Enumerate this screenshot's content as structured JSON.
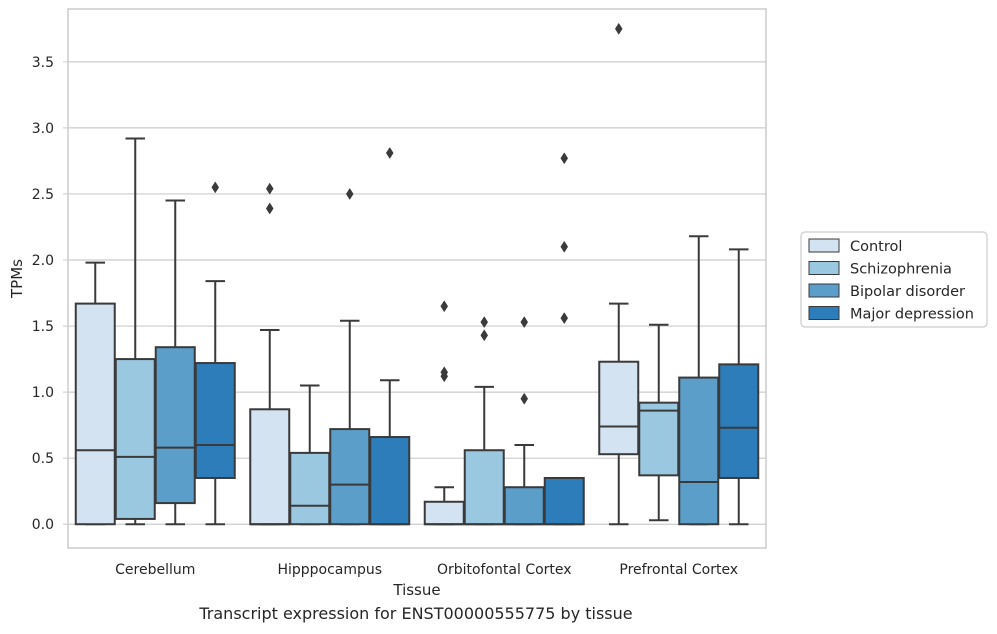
{
  "chart_data": {
    "type": "boxplot",
    "xlabel": "Tissue",
    "ylabel": "TPMs",
    "caption": "Transcript expression for ENST00000555775 by tissue",
    "ylim": [
      -0.18,
      3.9
    ],
    "yticks": [
      "0.0",
      "0.5",
      "1.0",
      "1.5",
      "2.0",
      "2.5",
      "3.0",
      "3.5"
    ],
    "grid": "horizontal",
    "legend_position": "right",
    "categories": [
      "Cerebellum",
      "Hipppocampus",
      "Orbitofontal Cortex",
      "Prefrontal Cortex"
    ],
    "series": [
      {
        "name": "Control",
        "color": "#d3e3f1",
        "boxes": [
          {
            "whislo": 0.0,
            "q1": 0.0,
            "med": 0.56,
            "q3": 1.67,
            "whishi": 1.98,
            "fliers": []
          },
          {
            "whislo": 0.0,
            "q1": 0.0,
            "med": 0.0,
            "q3": 0.87,
            "whishi": 1.47,
            "fliers": [
              2.39,
              2.54
            ]
          },
          {
            "whislo": 0.0,
            "q1": 0.0,
            "med": 0.0,
            "q3": 0.17,
            "whishi": 0.28,
            "fliers": [
              1.12,
              1.15,
              1.65
            ]
          },
          {
            "whislo": 0.0,
            "q1": 0.53,
            "med": 0.74,
            "q3": 1.23,
            "whishi": 1.67,
            "fliers": [
              3.75
            ]
          }
        ]
      },
      {
        "name": "Schizophrenia",
        "color": "#9ac8e0",
        "boxes": [
          {
            "whislo": 0.0,
            "q1": 0.04,
            "med": 0.51,
            "q3": 1.25,
            "whishi": 2.92,
            "fliers": []
          },
          {
            "whislo": 0.0,
            "q1": 0.0,
            "med": 0.14,
            "q3": 0.54,
            "whishi": 1.05,
            "fliers": []
          },
          {
            "whislo": 0.0,
            "q1": 0.0,
            "med": 0.0,
            "q3": 0.56,
            "whishi": 1.04,
            "fliers": [
              1.43,
              1.53
            ]
          },
          {
            "whislo": 0.03,
            "q1": 0.37,
            "med": 0.86,
            "q3": 0.92,
            "whishi": 1.51,
            "fliers": []
          }
        ]
      },
      {
        "name": "Bipolar disorder",
        "color": "#5b9ec9",
        "boxes": [
          {
            "whislo": 0.0,
            "q1": 0.16,
            "med": 0.58,
            "q3": 1.34,
            "whishi": 2.45,
            "fliers": []
          },
          {
            "whislo": 0.0,
            "q1": 0.0,
            "med": 0.3,
            "q3": 0.72,
            "whishi": 1.54,
            "fliers": [
              2.5
            ]
          },
          {
            "whislo": 0.0,
            "q1": 0.0,
            "med": 0.0,
            "q3": 0.28,
            "whishi": 0.6,
            "fliers": [
              0.95,
              1.53
            ]
          },
          {
            "whislo": 0.0,
            "q1": 0.0,
            "med": 0.32,
            "q3": 1.11,
            "whishi": 2.18,
            "fliers": []
          }
        ]
      },
      {
        "name": "Major depression",
        "color": "#2d7dbb",
        "boxes": [
          {
            "whislo": 0.0,
            "q1": 0.35,
            "med": 0.6,
            "q3": 1.22,
            "whishi": 1.84,
            "fliers": [
              2.55
            ]
          },
          {
            "whislo": 0.0,
            "q1": 0.0,
            "med": 0.0,
            "q3": 0.66,
            "whishi": 1.09,
            "fliers": [
              2.81
            ]
          },
          {
            "whislo": 0.0,
            "q1": 0.0,
            "med": 0.0,
            "q3": 0.35,
            "whishi": 0.35,
            "fliers": [
              1.56,
              2.1,
              2.77
            ]
          },
          {
            "whislo": 0.0,
            "q1": 0.35,
            "med": 0.73,
            "q3": 1.21,
            "whishi": 2.08,
            "fliers": []
          }
        ]
      }
    ]
  }
}
